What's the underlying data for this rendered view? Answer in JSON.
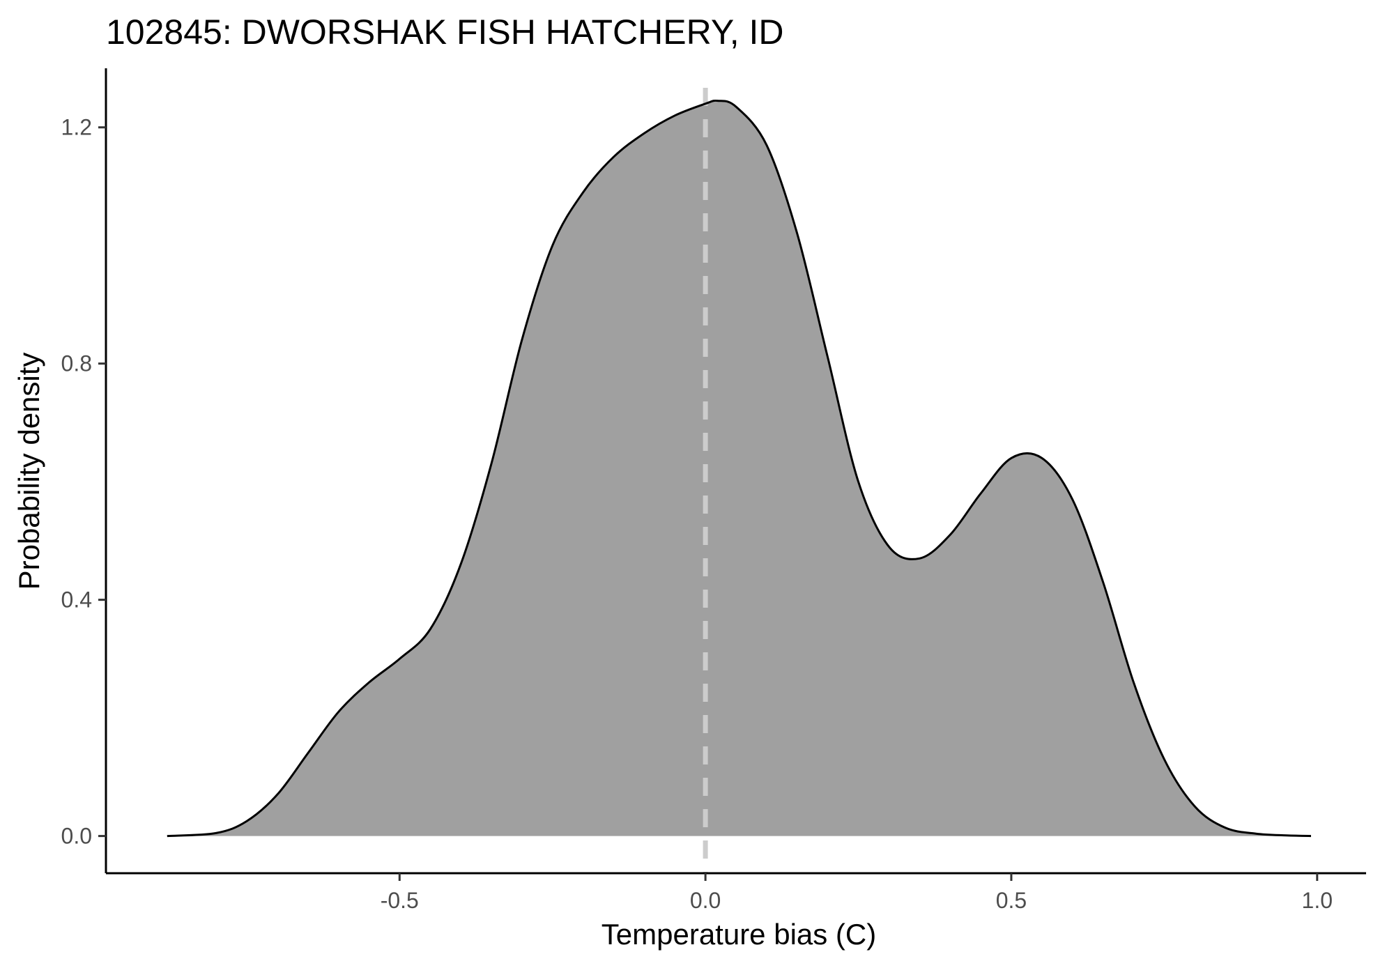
{
  "chart_data": {
    "type": "area",
    "title": "102845: DWORSHAK FISH HATCHERY, ID",
    "xlabel": "Temperature bias (C)",
    "ylabel": "Probability density",
    "xlim": [
      -0.98,
      1.08
    ],
    "ylim": [
      -0.063,
      1.3
    ],
    "x_ticks": [
      -0.5,
      0.0,
      0.5,
      1.0
    ],
    "x_tick_labels": [
      "-0.5",
      "0.0",
      "0.5",
      "1.0"
    ],
    "y_ticks": [
      0.0,
      0.4,
      0.8,
      1.2
    ],
    "y_tick_labels": [
      "0.0",
      "0.4",
      "0.8",
      "1.2"
    ],
    "grid": false,
    "legend": "none",
    "reference_line": {
      "x": 0.0,
      "style": "dashed",
      "color": "#cccccc"
    },
    "fill_color": "#a0a0a0",
    "line_color": "#000000",
    "series": [
      {
        "x": [
          -0.88,
          -0.8,
          -0.75,
          -0.7,
          -0.65,
          -0.6,
          -0.55,
          -0.5,
          -0.45,
          -0.4,
          -0.35,
          -0.3,
          -0.25,
          -0.2,
          -0.15,
          -0.1,
          -0.05,
          0.0,
          0.02,
          0.05,
          0.1,
          0.15,
          0.2,
          0.25,
          0.3,
          0.35,
          0.4,
          0.45,
          0.5,
          0.55,
          0.6,
          0.65,
          0.7,
          0.75,
          0.8,
          0.85,
          0.9,
          0.95,
          0.99
        ],
        "y": [
          0.0,
          0.005,
          0.025,
          0.07,
          0.14,
          0.21,
          0.26,
          0.3,
          0.35,
          0.46,
          0.63,
          0.84,
          1.0,
          1.09,
          1.15,
          1.19,
          1.22,
          1.24,
          1.245,
          1.235,
          1.17,
          1.02,
          0.81,
          0.6,
          0.49,
          0.47,
          0.51,
          0.58,
          0.64,
          0.64,
          0.57,
          0.43,
          0.26,
          0.13,
          0.05,
          0.014,
          0.004,
          0.001,
          0.0
        ]
      }
    ]
  }
}
